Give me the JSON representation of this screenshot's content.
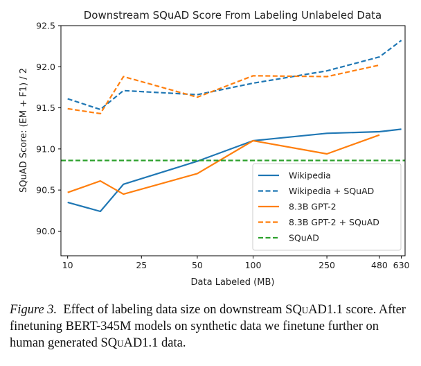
{
  "chart_data": {
    "type": "line",
    "title": "Downstream SQuAD Score From Labeling Unlabeled Data",
    "xlabel": "Data Labeled (MB)",
    "ylabel": "SQuAD Score: (EM + F1) / 2",
    "x_scale": "log",
    "x_ticks": [
      10,
      25,
      50,
      100,
      250,
      480,
      630
    ],
    "y_ticks": [
      "90.0",
      "90.5",
      "91.0",
      "91.5",
      "92.0",
      "92.5"
    ],
    "ylim": [
      89.7,
      92.5
    ],
    "xlim": [
      9.2,
      660
    ],
    "grid": false,
    "legend_position": "lower-right",
    "series": [
      {
        "name": "Wikipedia",
        "color": "#1f77b4",
        "dash": "solid",
        "x": [
          10,
          15,
          20,
          50,
          100,
          250,
          480,
          630
        ],
        "y": [
          90.35,
          90.24,
          90.57,
          90.85,
          91.1,
          91.19,
          91.21,
          91.24
        ]
      },
      {
        "name": "Wikipedia + SQuAD",
        "color": "#1f77b4",
        "dash": "dashed",
        "x": [
          10,
          15,
          20,
          50,
          100,
          250,
          480,
          630
        ],
        "y": [
          91.61,
          91.48,
          91.71,
          91.66,
          91.8,
          91.95,
          92.12,
          92.32
        ]
      },
      {
        "name": "8.3B GPT-2",
        "color": "#ff7f0e",
        "dash": "solid",
        "x": [
          10,
          15,
          20,
          50,
          100,
          250,
          480
        ],
        "y": [
          90.47,
          90.61,
          90.45,
          90.7,
          91.1,
          90.94,
          91.17
        ]
      },
      {
        "name": "8.3B GPT-2 + SQuAD",
        "color": "#ff7f0e",
        "dash": "dashed",
        "x": [
          10,
          15,
          20,
          50,
          100,
          250,
          480
        ],
        "y": [
          91.49,
          91.43,
          91.88,
          91.63,
          91.89,
          91.88,
          92.02
        ]
      },
      {
        "name": "SQuAD",
        "color": "#2ca02c",
        "dash": "dashed",
        "x": [
          9.2,
          660
        ],
        "y": [
          90.86,
          90.86
        ]
      }
    ]
  },
  "caption": {
    "label": "Figure 3.",
    "part1": "Effect of labeling data size on downstream ",
    "squad1": "SQuAD",
    "part2": "1.1 score. After finetuning BERT-345M models on synthetic data we finetune further on human generated ",
    "squad2": "SQuAD",
    "part3": "1.1 data."
  }
}
